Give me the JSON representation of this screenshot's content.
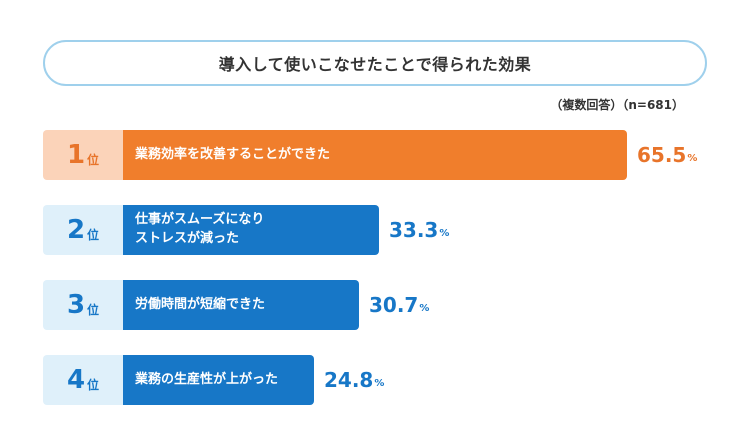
{
  "chart_data": {
    "type": "bar",
    "orientation": "horizontal",
    "title": "導入して使いこなせたことで得られた効果",
    "note": "（複数回答）（n=681）",
    "rank_suffix": "位",
    "unit": "%",
    "xlim": [
      0,
      100
    ],
    "colors": {
      "top_bar": "#f07e2c",
      "top_rank_bg": "#fbd3b9",
      "top_text": "#e8742a",
      "bar": "#1777c7",
      "rank_bg": "#dff0fa",
      "text": "#1777c7"
    },
    "items": [
      {
        "rank": "1",
        "lines": [
          "業務効率を改善することができた"
        ],
        "value": 65.5,
        "value_label": "65.5"
      },
      {
        "rank": "2",
        "lines": [
          "仕事がスムーズになり",
          "ストレスが減った"
        ],
        "value": 33.3,
        "value_label": "33.3"
      },
      {
        "rank": "3",
        "lines": [
          "労働時間が短縮できた"
        ],
        "value": 30.7,
        "value_label": "30.7"
      },
      {
        "rank": "4",
        "lines": [
          "業務の生産性が上がった"
        ],
        "value": 24.8,
        "value_label": "24.8"
      }
    ]
  }
}
